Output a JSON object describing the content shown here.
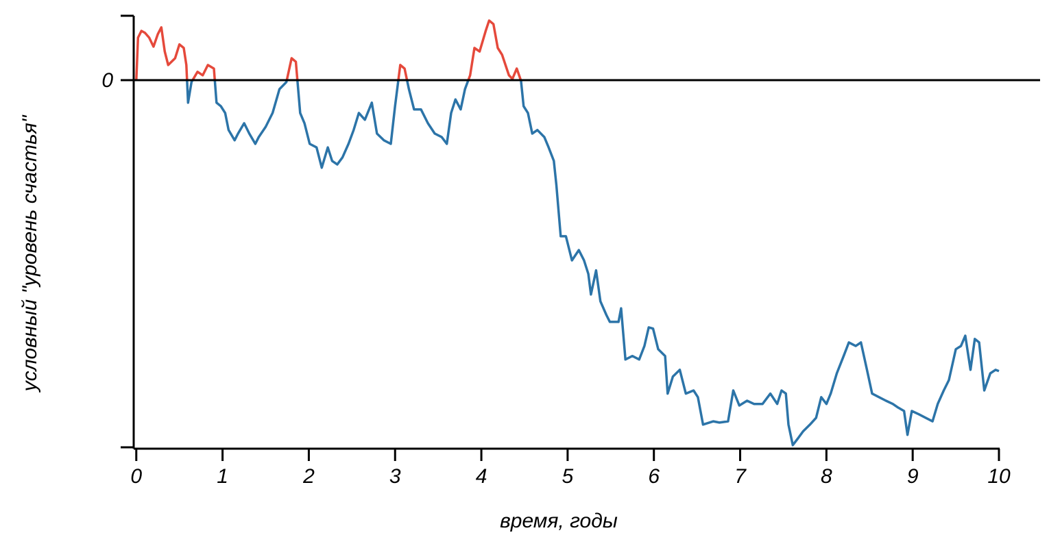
{
  "chart_data": {
    "type": "line",
    "xlabel": "время, годы",
    "ylabel": "условный \"уровень счастья\"",
    "x": [
      0,
      0.02,
      0.06,
      0.1,
      0.15,
      0.2,
      0.25,
      0.29,
      0.33,
      0.37,
      0.45,
      0.5,
      0.55,
      0.58,
      0.6,
      0.64,
      0.71,
      0.77,
      0.83,
      0.9,
      0.93,
      0.98,
      1.03,
      1.07,
      1.14,
      1.18,
      1.25,
      1.31,
      1.38,
      1.42,
      1.5,
      1.58,
      1.66,
      1.74,
      1.8,
      1.85,
      1.9,
      1.95,
      2.01,
      2.09,
      2.15,
      2.22,
      2.27,
      2.33,
      2.39,
      2.46,
      2.52,
      2.58,
      2.65,
      2.73,
      2.79,
      2.87,
      2.95,
      3.0,
      3.06,
      3.11,
      3.16,
      3.22,
      3.3,
      3.38,
      3.46,
      3.54,
      3.6,
      3.65,
      3.7,
      3.76,
      3.81,
      3.87,
      3.92,
      3.98,
      4.05,
      4.09,
      4.14,
      4.19,
      4.24,
      4.32,
      4.36,
      4.41,
      4.46,
      4.49,
      4.54,
      4.59,
      4.65,
      4.73,
      4.78,
      4.84,
      4.87,
      4.92,
      4.98,
      5.05,
      5.13,
      5.19,
      5.24,
      5.27,
      5.33,
      5.38,
      5.45,
      5.49,
      5.59,
      5.62,
      5.67,
      5.75,
      5.83,
      5.89,
      5.94,
      5.99,
      6.05,
      6.13,
      6.16,
      6.22,
      6.3,
      6.37,
      6.46,
      6.51,
      6.57,
      6.69,
      6.76,
      6.86,
      6.92,
      6.99,
      7.08,
      7.16,
      7.26,
      7.35,
      7.43,
      7.48,
      7.53,
      7.56,
      7.61,
      7.67,
      7.73,
      7.81,
      7.88,
      7.94,
      8.0,
      8.05,
      8.12,
      8.2,
      8.26,
      8.34,
      8.4,
      8.47,
      8.53,
      8.61,
      8.69,
      8.77,
      8.83,
      8.9,
      8.94,
      8.99,
      9.07,
      9.15,
      9.23,
      9.29,
      9.36,
      9.42,
      9.5,
      9.56,
      9.61,
      9.67,
      9.72,
      9.77,
      9.83,
      9.9,
      9.96,
      10.0
    ],
    "values": [
      0,
      1.32,
      1.53,
      1.47,
      1.32,
      1.04,
      1.43,
      1.64,
      0.89,
      0.47,
      0.68,
      1.11,
      1.0,
      0.47,
      -0.7,
      -0.06,
      0.26,
      0.15,
      0.47,
      0.36,
      -0.7,
      -0.81,
      -1.02,
      -1.55,
      -1.87,
      -1.66,
      -1.34,
      -1.66,
      -1.98,
      -1.77,
      -1.45,
      -1.02,
      -0.28,
      -0.06,
      0.68,
      0.57,
      -1.02,
      -1.34,
      -1.98,
      -2.09,
      -2.72,
      -2.09,
      -2.51,
      -2.62,
      -2.4,
      -1.98,
      -1.55,
      -1.02,
      -1.23,
      -0.7,
      -1.66,
      -1.87,
      -1.98,
      -0.81,
      0.47,
      0.36,
      -0.28,
      -0.91,
      -0.91,
      -1.34,
      -1.66,
      -1.77,
      -1.98,
      -1.02,
      -0.6,
      -0.91,
      -0.28,
      0.15,
      1.0,
      0.89,
      1.53,
      1.85,
      1.74,
      1.0,
      0.79,
      0.15,
      0.04,
      0.36,
      -0.02,
      -0.81,
      -1.02,
      -1.66,
      -1.55,
      -1.77,
      -2.09,
      -2.51,
      -3.26,
      -4.85,
      -4.85,
      -5.6,
      -5.28,
      -5.6,
      -6.02,
      -6.66,
      -5.91,
      -6.87,
      -7.3,
      -7.51,
      -7.51,
      -7.09,
      -8.68,
      -8.57,
      -8.68,
      -8.26,
      -7.68,
      -7.72,
      -8.36,
      -8.57,
      -9.74,
      -9.21,
      -9.0,
      -9.74,
      -9.64,
      -9.85,
      -10.7,
      -10.6,
      -10.64,
      -10.6,
      -9.64,
      -10.11,
      -9.96,
      -10.06,
      -10.06,
      -9.74,
      -10.06,
      -9.64,
      -9.74,
      -10.7,
      -11.34,
      -11.13,
      -10.91,
      -10.7,
      -10.49,
      -9.85,
      -10.06,
      -9.74,
      -9.11,
      -8.57,
      -8.15,
      -8.26,
      -8.15,
      -9.0,
      -9.74,
      -9.85,
      -9.96,
      -10.06,
      -10.17,
      -10.28,
      -11.02,
      -10.28,
      -10.38,
      -10.49,
      -10.6,
      -10.06,
      -9.64,
      -9.32,
      -8.36,
      -8.26,
      -7.94,
      -9.0,
      -8.04,
      -8.15,
      -9.64,
      -9.11,
      -9.0,
      -9.04
    ],
    "color_positive": "#e5493b",
    "color_negative": "#2c74a8",
    "xlim": [
      -0.03,
      10
    ],
    "xticks": [
      0,
      1,
      2,
      3,
      4,
      5,
      6,
      7,
      8,
      9,
      10
    ],
    "ylim": [
      -11.45,
      2
    ],
    "yticks": [
      0
    ],
    "zero_line": true
  }
}
